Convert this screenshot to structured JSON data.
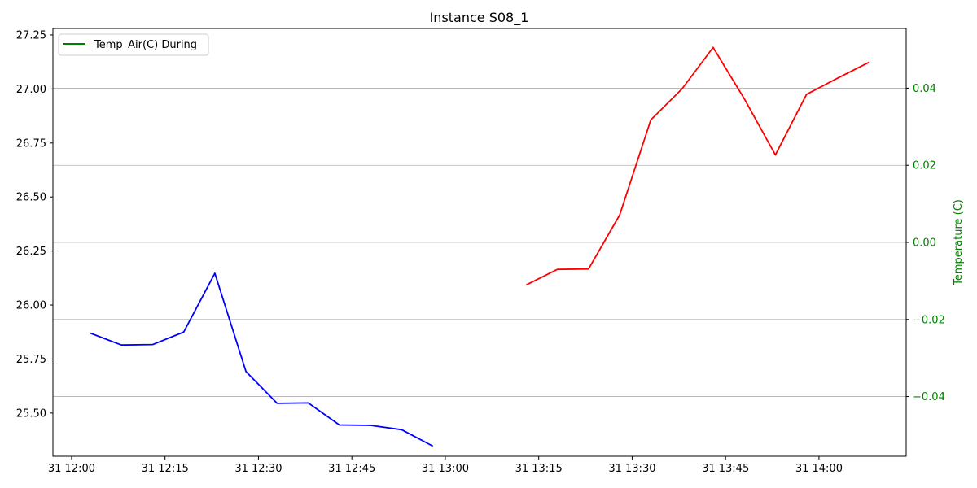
{
  "chart_data": {
    "type": "line",
    "title": "Instance S08_1",
    "x_date_prefix": "31",
    "x_ticks": [
      "31 12:00",
      "31 12:15",
      "31 12:30",
      "31 12:45",
      "31 13:00",
      "31 13:15",
      "31 13:30",
      "31 13:45",
      "31 14:00"
    ],
    "x_range": [
      "11:57",
      "14:14"
    ],
    "y_left": {
      "range": [
        25.3,
        27.28
      ],
      "ticks": [
        "25.50",
        "25.75",
        "26.00",
        "26.25",
        "26.50",
        "26.75",
        "27.00",
        "27.25"
      ]
    },
    "y_right": {
      "label": "Temperature (C)",
      "range": [
        -0.0555,
        0.0555
      ],
      "ticks": [
        "−0.04",
        "−0.02",
        "0.00",
        "0.02",
        "0.04"
      ],
      "grid": true,
      "color": "#008000"
    },
    "legend": {
      "placement": "top-left",
      "entries": [
        {
          "label": "Temp_Air(C) During",
          "color": "#008000"
        }
      ]
    },
    "series": [
      {
        "color": "#0000ff",
        "x": [
          "12:03",
          "12:08",
          "12:13",
          "12:18",
          "12:23",
          "12:28",
          "12:33",
          "12:38",
          "12:43",
          "12:48",
          "12:53",
          "12:58"
        ],
        "y": [
          25.87,
          25.815,
          25.817,
          25.875,
          26.147,
          25.692,
          25.545,
          25.547,
          25.445,
          25.443,
          25.423,
          25.347
        ]
      },
      {
        "color": "#ff0000",
        "x": [
          "13:13",
          "13:18",
          "13:23",
          "13:28",
          "13:33",
          "13:38",
          "13:43",
          "13:48",
          "13:53",
          "13:58",
          "14:03",
          "14:08"
        ],
        "y": [
          26.093,
          26.165,
          26.167,
          26.417,
          26.857,
          27.0,
          27.192,
          26.955,
          26.695,
          26.975,
          27.05,
          27.123
        ]
      }
    ]
  }
}
